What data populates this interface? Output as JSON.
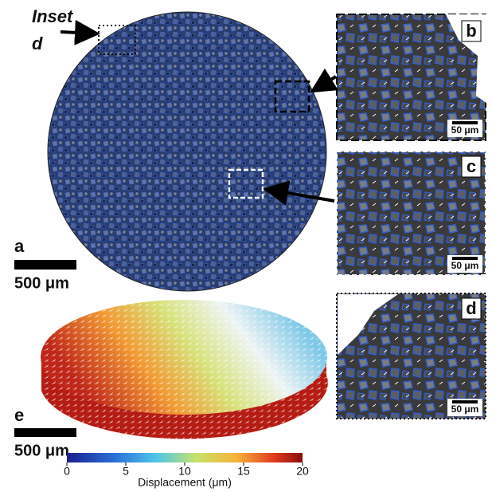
{
  "inset_label": {
    "word": "Inset",
    "letter": "d"
  },
  "panels": {
    "a": "a",
    "b": "b",
    "c": "c",
    "d": "d",
    "e": "e"
  },
  "scale_bars": {
    "a": "500 μm",
    "e": "500 μm",
    "b": "50 μm",
    "c": "50 μm",
    "d": "50 μm"
  },
  "colorbar": {
    "ticks": [
      0,
      5,
      10,
      15,
      20
    ],
    "label": "Displacement (μm)"
  }
}
